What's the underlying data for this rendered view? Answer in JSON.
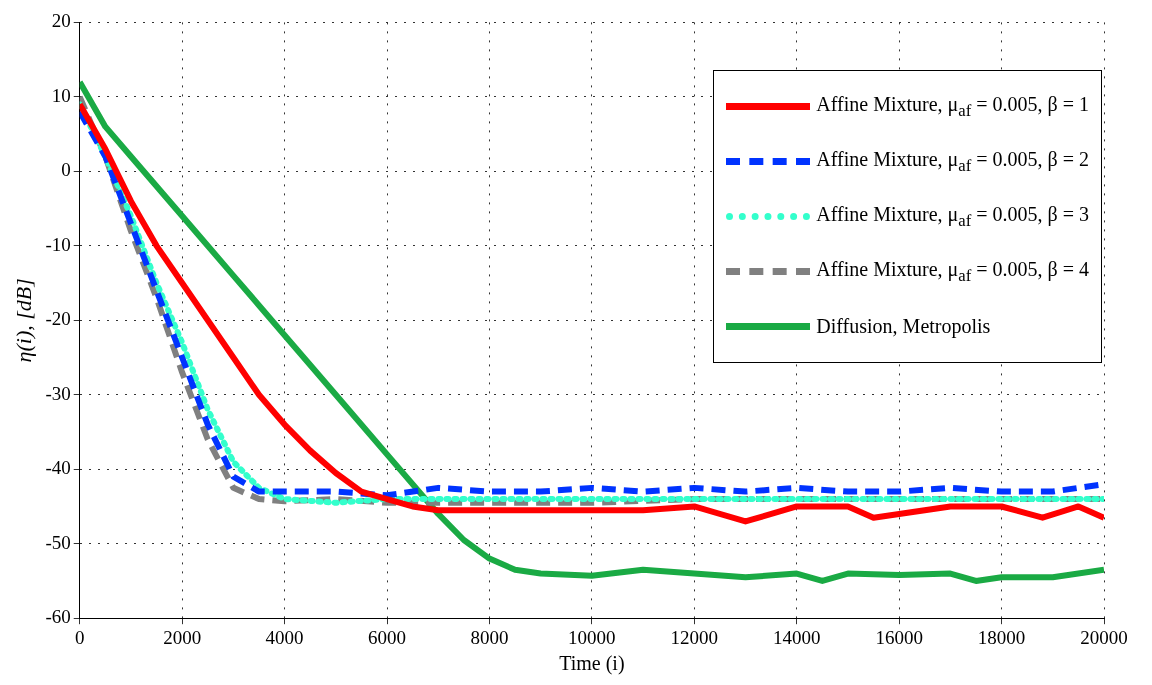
{
  "chart_data": {
    "type": "line",
    "xlabel": "Time (i)",
    "ylabel": "η(i), [dB]",
    "xlim": [
      0,
      20000
    ],
    "xticks": [
      0,
      2000,
      4000,
      6000,
      8000,
      10000,
      12000,
      14000,
      16000,
      18000,
      20000
    ],
    "ylim": [
      -60,
      20
    ],
    "yticks": [
      -60,
      -50,
      -40,
      -30,
      -20,
      -10,
      0,
      10,
      20
    ],
    "grid": true,
    "legend": "top right",
    "marker": "none",
    "series": [
      {
        "name": "Affine Mixture, μ$_{af}$ = 0.005, β = 1",
        "color": "#ff0000",
        "line_style": "solid",
        "x": [
          0,
          500,
          1000,
          1500,
          2000,
          2500,
          3000,
          3500,
          4000,
          4500,
          5000,
          5500,
          6000,
          6500,
          7000,
          8000,
          9000,
          10000,
          11000,
          12000,
          13000,
          14000,
          15000,
          15500,
          16000,
          17000,
          18000,
          18800,
          19500,
          20000
        ],
        "values": [
          9,
          3,
          -4,
          -10,
          -15,
          -20,
          -25,
          -30,
          -34,
          -37.5,
          -40.5,
          -43,
          -44,
          -45,
          -45.5,
          -45.5,
          -45.5,
          -45.5,
          -45.5,
          -45,
          -47,
          -45,
          -45,
          -46.5,
          -46,
          -45,
          -45,
          -46.5,
          -45,
          -46.5
        ]
      },
      {
        "name": "Affine Mixture, μ$_{af}$ = 0.005, β = 2",
        "color": "#0033ff",
        "line_style": "dashed",
        "x": [
          0,
          500,
          1000,
          1500,
          2000,
          2500,
          3000,
          3500,
          4000,
          5000,
          6000,
          7000,
          8000,
          9000,
          10000,
          11000,
          12000,
          13000,
          14000,
          15000,
          16000,
          17000,
          18000,
          19000,
          20000
        ],
        "values": [
          8,
          2,
          -7,
          -16,
          -25,
          -34,
          -41,
          -43,
          -43,
          -43,
          -43.5,
          -42.5,
          -43,
          -43,
          -42.5,
          -43,
          -42.5,
          -43,
          -42.5,
          -43,
          -43,
          -42.5,
          -43,
          -43,
          -42
        ]
      },
      {
        "name": "Affine Mixture, μ$_{af}$ = 0.005, β = 3",
        "color": "#33ffcc",
        "line_style": "dotted",
        "x": [
          0,
          500,
          1000,
          1500,
          2000,
          2500,
          3000,
          3500,
          4000,
          5000,
          6000,
          8000,
          10000,
          12000,
          14000,
          16000,
          18000,
          20000
        ],
        "values": [
          9,
          2,
          -6,
          -15,
          -23,
          -32,
          -39,
          -42.5,
          -44,
          -44.5,
          -44,
          -44,
          -44,
          -44,
          -44,
          -44,
          -44,
          -44
        ]
      },
      {
        "name": "Affine Mixture, μ$_{af}$ = 0.005, β = 4",
        "color": "#808080",
        "line_style": "dashed",
        "x": [
          0,
          500,
          1000,
          1500,
          2000,
          2500,
          3000,
          3500,
          4000,
          5000,
          6000,
          8000,
          10000,
          12000,
          14000,
          16000,
          18000,
          20000
        ],
        "values": [
          10,
          2,
          -8,
          -17,
          -27,
          -36,
          -42.5,
          -44,
          -44.3,
          -44,
          -44.5,
          -44.5,
          -44.5,
          -44,
          -44,
          -44,
          -44,
          -44
        ]
      },
      {
        "name": "Diffusion, Metropolis",
        "color": "#1aaa44",
        "line_style": "solid",
        "x": [
          0,
          500,
          1000,
          2000,
          3000,
          4000,
          5000,
          6000,
          7000,
          7500,
          8000,
          8500,
          9000,
          10000,
          11000,
          12000,
          13000,
          14000,
          14500,
          15000,
          16000,
          17000,
          17500,
          18000,
          19000,
          20000
        ],
        "values": [
          12,
          6,
          2,
          -6,
          -14,
          -22,
          -30,
          -38,
          -46,
          -49.5,
          -52,
          -53.5,
          -54,
          -54.3,
          -53.5,
          -54,
          -54.5,
          -54,
          -55,
          -54,
          -54.2,
          -54,
          -55,
          -54.5,
          -54.5,
          -53.5
        ]
      }
    ]
  }
}
